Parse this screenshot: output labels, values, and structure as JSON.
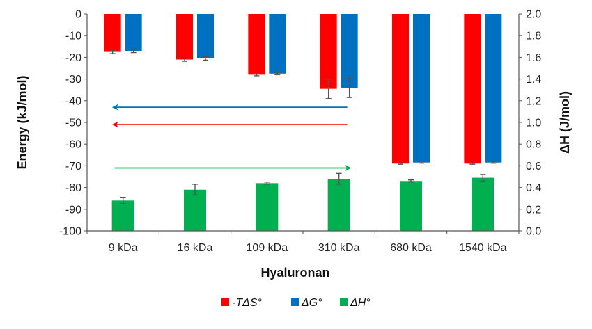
{
  "chart_data": {
    "type": "bar",
    "xlabel": "Hyaluronan",
    "ylabel_left": "Energy (kJ/mol)",
    "ylabel_right": "ΔH (J/mol)",
    "categories": [
      "9 kDa",
      "16 kDa",
      "109 kDa",
      "310 kDa",
      "680 kDa",
      "1540 kDa"
    ],
    "ylim_left": [
      -100,
      0
    ],
    "ylim_right": [
      0,
      2.0
    ],
    "left_ticks": [
      "0",
      "-10",
      "-20",
      "-30",
      "-40",
      "-50",
      "-60",
      "-70",
      "-80",
      "-90",
      "-100"
    ],
    "right_ticks": [
      "2.0",
      "1.8",
      "1.6",
      "1.4",
      "1.2",
      "1.0",
      "0.8",
      "0.6",
      "0.4",
      "0.2",
      "0.0"
    ],
    "series": [
      {
        "name": "-TΔS°",
        "axis": "left",
        "color": "#ff0000",
        "values": [
          -17.5,
          -21,
          -28,
          -34.5,
          -69,
          -69
        ],
        "errors": [
          0.8,
          0.8,
          0.5,
          4.5,
          0.3,
          0.3
        ]
      },
      {
        "name": "ΔG°",
        "axis": "left",
        "color": "#0070c0",
        "values": [
          -17,
          -20.5,
          -27.5,
          -34,
          -68.5,
          -68.5
        ],
        "errors": [
          0.8,
          0.8,
          0.5,
          4.5,
          0.3,
          0.3
        ]
      },
      {
        "name": "ΔH°",
        "axis": "right",
        "color": "#00b050",
        "values": [
          0.28,
          0.38,
          0.44,
          0.48,
          0.46,
          0.49
        ],
        "errors": [
          0.03,
          0.05,
          0.01,
          0.05,
          0.01,
          0.03
        ]
      }
    ],
    "arrows": [
      {
        "color": "#0070c0",
        "direction": "left",
        "from_category": "310 kDa",
        "to_category": "9 kDa",
        "y": -43
      },
      {
        "color": "#ff0000",
        "direction": "left",
        "from_category": "310 kDa",
        "to_category": "9 kDa",
        "y": -51
      },
      {
        "color": "#00b050",
        "direction": "right",
        "from_category": "9 kDa",
        "to_category": "310 kDa",
        "y": -71
      }
    ],
    "legend_position": "bottom"
  }
}
